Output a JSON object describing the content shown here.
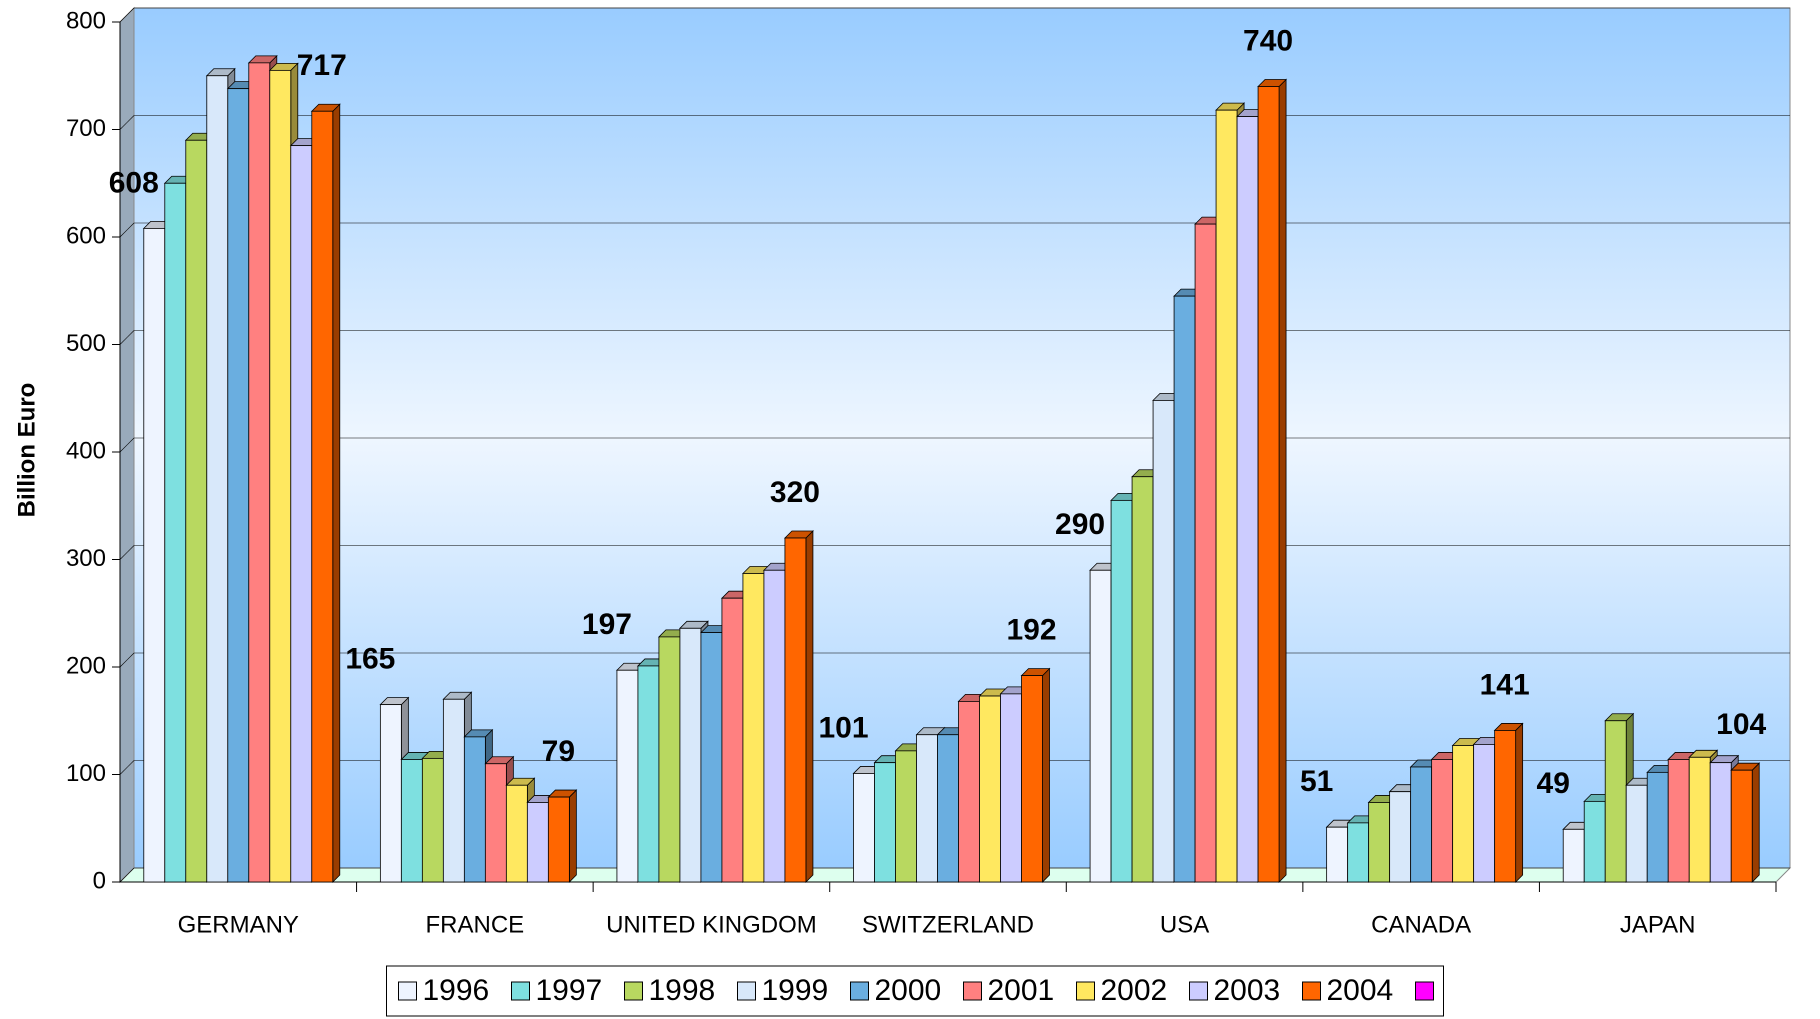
{
  "chart_data": {
    "type": "bar",
    "y_label": "Billion Euro",
    "categories": [
      "GERMANY",
      "FRANCE",
      "UNITED KINGDOM",
      "SWITZERLAND",
      "USA",
      "CANADA",
      "JAPAN"
    ],
    "series": [
      {
        "name": "1996",
        "color": "#eef4ff",
        "values": [
          608,
          165,
          197,
          101,
          290,
          51,
          49
        ]
      },
      {
        "name": "1997",
        "color": "#7ee0e0",
        "values": [
          650,
          114,
          201,
          111,
          355,
          55,
          75
        ]
      },
      {
        "name": "1998",
        "color": "#b8d860",
        "values": [
          690,
          115,
          228,
          122,
          377,
          74,
          150
        ]
      },
      {
        "name": "1999",
        "color": "#d8e8fa",
        "values": [
          750,
          170,
          236,
          137,
          448,
          84,
          90
        ]
      },
      {
        "name": "2000",
        "color": "#6aaee0",
        "values": [
          738,
          135,
          232,
          137,
          545,
          107,
          102
        ]
      },
      {
        "name": "2001",
        "color": "#ff8080",
        "values": [
          762,
          110,
          264,
          168,
          612,
          114,
          114
        ]
      },
      {
        "name": "2002",
        "color": "#ffe860",
        "values": [
          755,
          90,
          287,
          173,
          718,
          127,
          116
        ]
      },
      {
        "name": "2003",
        "color": "#ccccff",
        "values": [
          685,
          74,
          290,
          175,
          712,
          128,
          111
        ]
      },
      {
        "name": "2004",
        "color": "#ff6600",
        "values": [
          717,
          79,
          320,
          192,
          740,
          141,
          104
        ]
      }
    ],
    "ylim": [
      0,
      800
    ],
    "yticks": [
      0,
      100,
      200,
      300,
      400,
      500,
      600,
      700,
      800
    ],
    "grid": true
  }
}
